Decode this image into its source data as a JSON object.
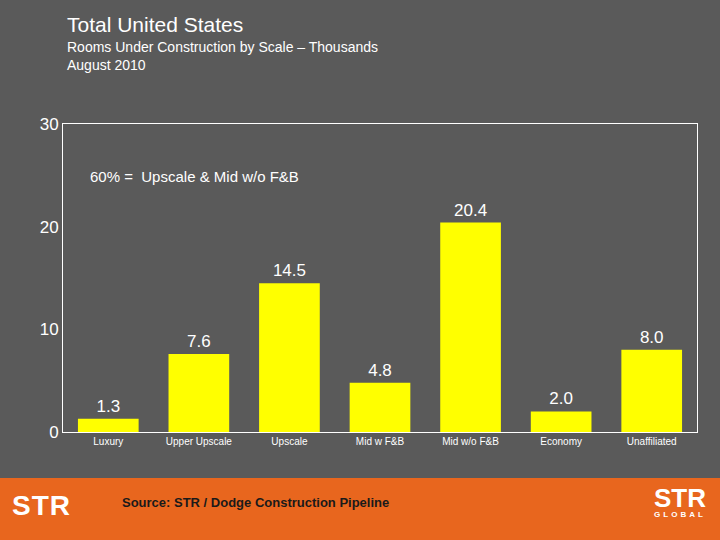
{
  "chart_data": {
    "type": "bar",
    "title": "Total United States",
    "subtitle": [
      "Rooms Under Construction by Scale – Thousands",
      "August 2010"
    ],
    "categories": [
      "Luxury",
      "Upper Upscale",
      "Upscale",
      "Mid w F&B",
      "Mid w/o F&B",
      "Economy",
      "Unaffiliated"
    ],
    "values": [
      1.3,
      7.6,
      14.5,
      4.8,
      20.4,
      2.0,
      8.0
    ],
    "value_labels": [
      "1.3",
      "7.6",
      "14.5",
      "4.8",
      "20.4",
      "2.0",
      "8.0"
    ],
    "color": "#ffff00",
    "ylim": [
      0,
      30
    ],
    "yticks": [
      0,
      10,
      20,
      30
    ],
    "grid": false,
    "data_labels": true,
    "annotations": [
      "60% =  Upscale & Mid w/o F&B"
    ],
    "source": "Source: STR / Dodge Construction Pipeline",
    "logos": [
      "STR",
      "STR",
      "GLOBAL"
    ]
  }
}
